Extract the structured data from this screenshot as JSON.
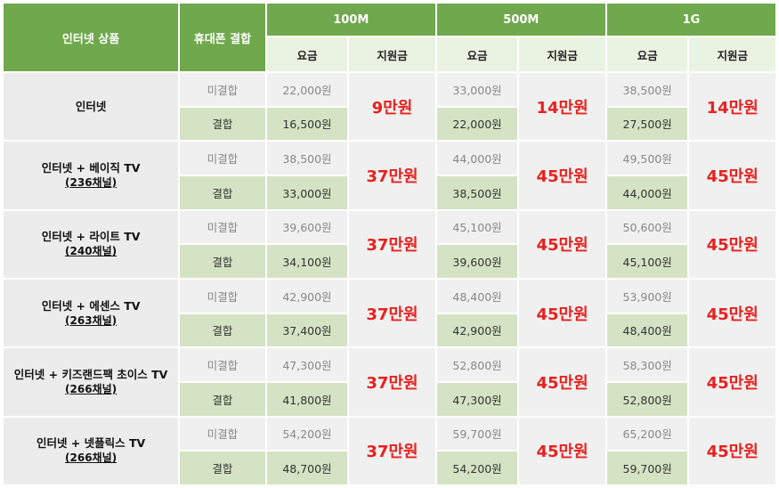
{
  "header": {
    "product": "인터넷 상품",
    "bundle": "휴대폰 결합",
    "speeds": [
      "100M",
      "500M",
      "1G"
    ],
    "fee": "요금",
    "support": "지원금"
  },
  "labels": {
    "unbundled": "미결합",
    "bundled": "결합"
  },
  "rows": [
    {
      "name": "인터넷",
      "channels": "",
      "unbundled": [
        "22,000원",
        "33,000원",
        "38,500원"
      ],
      "bundled": [
        "16,500원",
        "22,000원",
        "27,500원"
      ],
      "support": [
        "9만원",
        "14만원",
        "14만원"
      ]
    },
    {
      "name": "인터넷 + 베이직 TV",
      "channels": "(236채널)",
      "unbundled": [
        "38,500원",
        "44,000원",
        "49,500원"
      ],
      "bundled": [
        "33,000원",
        "38,500원",
        "44,000원"
      ],
      "support": [
        "37만원",
        "45만원",
        "45만원"
      ]
    },
    {
      "name": "인터넷 + 라이트 TV",
      "channels": "(240채널)",
      "unbundled": [
        "39,600원",
        "45,100원",
        "50,600원"
      ],
      "bundled": [
        "34,100원",
        "39,600원",
        "45,100원"
      ],
      "support": [
        "37만원",
        "45만원",
        "45만원"
      ]
    },
    {
      "name": "인터넷 + 에센스 TV",
      "channels": "(263채널)",
      "unbundled": [
        "42,900원",
        "48,400원",
        "53,900원"
      ],
      "bundled": [
        "37,400원",
        "42,900원",
        "48,400원"
      ],
      "support": [
        "37만원",
        "45만원",
        "45만원"
      ]
    },
    {
      "name": "인터넷 + 키즈랜드팩 초이스 TV",
      "channels": "(266채널)",
      "unbundled": [
        "47,300원",
        "52,800원",
        "58,300원"
      ],
      "bundled": [
        "41,800원",
        "47,300원",
        "52,800원"
      ],
      "support": [
        "37만원",
        "45만원",
        "45만원"
      ]
    },
    {
      "name": "인터넷 + 넷플릭스 TV",
      "channels": "(266채널)",
      "unbundled": [
        "54,200원",
        "59,700원",
        "65,200원"
      ],
      "bundled": [
        "48,700원",
        "54,200원",
        "59,700원"
      ],
      "support": [
        "37만원",
        "45만원",
        "45만원"
      ]
    }
  ]
}
